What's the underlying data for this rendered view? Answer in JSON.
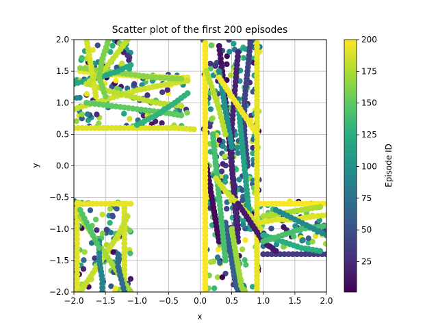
{
  "chart_data": {
    "type": "scatter",
    "title": "Scatter plot of the first 200 episodes",
    "xlabel": "x",
    "ylabel": "y",
    "xlim": [
      -2.0,
      2.0
    ],
    "ylim": [
      -2.0,
      2.0
    ],
    "xticks": [
      "−2.0",
      "−1.5",
      "−1.0",
      "−0.5",
      "0.0",
      "0.5",
      "1.0",
      "1.5",
      "2.0"
    ],
    "yticks": [
      "−2.0",
      "−1.5",
      "−1.0",
      "−0.5",
      "0.0",
      "0.5",
      "1.0",
      "1.5",
      "2.0"
    ],
    "xtick_values": [
      -2.0,
      -1.5,
      -1.0,
      -0.5,
      0.0,
      0.5,
      1.0,
      1.5,
      2.0
    ],
    "ytick_values": [
      -2.0,
      -1.5,
      -1.0,
      -0.5,
      0.0,
      0.5,
      1.0,
      1.5,
      2.0
    ],
    "grid": true,
    "colormap": "viridis",
    "colorbar": {
      "label": "Episode ID",
      "range": [
        1,
        200
      ],
      "ticks": [
        "25",
        "50",
        "75",
        "100",
        "125",
        "150",
        "175",
        "200"
      ],
      "tick_values": [
        25,
        50,
        75,
        100,
        125,
        150,
        175,
        200
      ]
    },
    "regions": [
      {
        "x": [
          -2.0,
          -1.1
        ],
        "y": [
          0.6,
          2.0
        ]
      },
      {
        "x": [
          -1.1,
          -0.2
        ],
        "y": [
          0.6,
          1.45
        ]
      },
      {
        "x": [
          0.05,
          0.95
        ],
        "y": [
          -2.0,
          2.0
        ]
      },
      {
        "x": [
          0.95,
          2.0
        ],
        "y": [
          -1.4,
          -0.55
        ]
      },
      {
        "x": [
          -2.0,
          -1.1
        ],
        "y": [
          -2.0,
          -0.55
        ]
      }
    ],
    "series": [
      {
        "episode": 190,
        "x": [
          -2.0,
          -1.6,
          -1.2,
          -0.8,
          -0.4,
          -0.1
        ],
        "y": [
          0.6,
          0.6,
          0.6,
          0.6,
          0.6,
          0.58
        ]
      },
      {
        "episode": 195,
        "x": [
          -1.9,
          -1.4,
          -0.9,
          -0.4,
          -0.2
        ],
        "y": [
          1.5,
          1.45,
          1.42,
          1.4,
          1.4
        ]
      },
      {
        "episode": 185,
        "x": [
          -2.0,
          -1.5,
          -1.0,
          -0.5,
          -0.2
        ],
        "y": [
          0.9,
          1.05,
          1.2,
          1.3,
          1.35
        ]
      },
      {
        "episode": 180,
        "x": [
          -1.9,
          -1.5,
          -1.1,
          -0.7,
          -0.3
        ],
        "y": [
          1.35,
          1.2,
          1.1,
          1.0,
          0.95
        ]
      },
      {
        "episode": 150,
        "x": [
          -1.8,
          -1.4,
          -1.0,
          -0.6,
          -0.3
        ],
        "y": [
          1.0,
          0.95,
          0.9,
          0.85,
          0.8
        ]
      },
      {
        "episode": 165,
        "x": [
          -1.9,
          -1.5,
          -1.1,
          -0.7,
          -0.3
        ],
        "y": [
          1.55,
          1.5,
          1.45,
          1.4,
          1.38
        ]
      },
      {
        "episode": 130,
        "x": [
          -1.0,
          -0.7,
          -0.4,
          -0.2
        ],
        "y": [
          0.65,
          0.8,
          1.0,
          1.15
        ]
      },
      {
        "episode": 120,
        "x": [
          -2.0,
          -1.6,
          -1.3,
          -1.1
        ],
        "y": [
          1.3,
          1.4,
          1.5,
          1.6
        ]
      },
      {
        "episode": 188,
        "x": [
          -1.8,
          -1.75,
          -1.7,
          -1.65
        ],
        "y": [
          2.0,
          1.7,
          1.4,
          1.1
        ]
      },
      {
        "episode": 182,
        "x": [
          -1.15,
          -1.3,
          -1.5,
          -1.8
        ],
        "y": [
          2.0,
          1.8,
          1.55,
          1.3
        ]
      },
      {
        "episode": 160,
        "x": [
          -1.45,
          -1.55,
          -1.6,
          -1.5
        ],
        "y": [
          2.0,
          1.7,
          1.4,
          1.1
        ]
      },
      {
        "episode": 10,
        "x": [
          0.3,
          0.35,
          0.4,
          0.45,
          0.5,
          0.55,
          0.6
        ],
        "y": [
          1.9,
          1.5,
          1.0,
          0.5,
          0.0,
          -0.5,
          -1.0
        ]
      },
      {
        "episode": 20,
        "x": [
          0.6,
          0.55,
          0.5,
          0.5,
          0.55,
          0.6
        ],
        "y": [
          1.8,
          1.2,
          0.6,
          0.0,
          -0.6,
          -1.2
        ]
      },
      {
        "episode": 5,
        "x": [
          0.1,
          0.15,
          0.2,
          0.25,
          0.3
        ],
        "y": [
          0.0,
          -0.3,
          -0.6,
          -0.9,
          -1.2
        ]
      },
      {
        "episode": 40,
        "x": [
          0.8,
          0.75,
          0.7,
          0.7,
          0.75
        ],
        "y": [
          2.0,
          1.5,
          1.0,
          0.5,
          0.0
        ]
      },
      {
        "episode": 60,
        "x": [
          0.4,
          0.45,
          0.5,
          0.55,
          0.6
        ],
        "y": [
          -0.9,
          -1.2,
          -1.5,
          -1.8,
          -2.0
        ]
      },
      {
        "episode": 100,
        "x": [
          0.3,
          0.35,
          0.4,
          0.45,
          0.5
        ],
        "y": [
          1.5,
          1.2,
          0.9,
          0.6,
          0.3
        ]
      },
      {
        "episode": 115,
        "x": [
          0.6,
          0.65,
          0.7,
          0.75,
          0.8
        ],
        "y": [
          1.0,
          0.5,
          0.0,
          -0.5,
          -1.0
        ]
      },
      {
        "episode": 140,
        "x": [
          0.2,
          0.25,
          0.3,
          0.35,
          0.4
        ],
        "y": [
          0.5,
          0.0,
          -0.5,
          -1.0,
          -1.5
        ]
      },
      {
        "episode": 170,
        "x": [
          0.5,
          0.55,
          0.6,
          0.65,
          0.7
        ],
        "y": [
          -1.0,
          -1.3,
          -1.6,
          -1.9,
          -2.0
        ]
      },
      {
        "episode": 198,
        "x": [
          0.08,
          0.08,
          0.08,
          0.08,
          0.08,
          0.08,
          0.08
        ],
        "y": [
          1.95,
          1.3,
          0.7,
          0.0,
          -0.7,
          -1.3,
          -2.0
        ]
      },
      {
        "episode": 193,
        "x": [
          0.9,
          0.9,
          0.9,
          0.9,
          0.9,
          0.9,
          0.9
        ],
        "y": [
          1.95,
          1.3,
          0.7,
          0.0,
          -0.7,
          -1.3,
          -2.0
        ]
      },
      {
        "episode": 186,
        "x": [
          0.25,
          0.4,
          0.6,
          0.8,
          0.95
        ],
        "y": [
          -0.2,
          -0.4,
          -0.6,
          -0.8,
          -1.0
        ]
      },
      {
        "episode": 178,
        "x": [
          0.1,
          0.2,
          0.3,
          0.35,
          0.4
        ],
        "y": [
          1.5,
          1.2,
          0.9,
          0.7,
          0.5
        ]
      },
      {
        "episode": 196,
        "x": [
          0.3,
          0.5,
          0.7,
          0.9
        ],
        "y": [
          1.4,
          1.1,
          0.8,
          0.5
        ]
      },
      {
        "episode": 35,
        "x": [
          1.0,
          1.2,
          1.4,
          1.6,
          1.8,
          2.0
        ],
        "y": [
          -1.4,
          -1.4,
          -1.4,
          -1.4,
          -1.4,
          -1.4
        ]
      },
      {
        "episode": 15,
        "x": [
          0.6,
          0.8,
          1.0,
          1.2
        ],
        "y": [
          -0.6,
          -0.9,
          -1.2,
          -1.35
        ]
      },
      {
        "episode": 125,
        "x": [
          1.0,
          1.3,
          1.6,
          1.9
        ],
        "y": [
          -1.1,
          -1.2,
          -1.3,
          -1.35
        ]
      },
      {
        "episode": 140,
        "x": [
          1.0,
          1.3,
          1.6,
          2.0
        ],
        "y": [
          -1.2,
          -1.1,
          -1.0,
          -0.95
        ]
      },
      {
        "episode": 199,
        "x": [
          0.95,
          1.2,
          1.5,
          1.8,
          2.0
        ],
        "y": [
          -0.6,
          -0.6,
          -0.6,
          -0.6,
          -0.6
        ]
      },
      {
        "episode": 190,
        "x": [
          0.95,
          1.2,
          1.5,
          1.8,
          2.0
        ],
        "y": [
          -0.9,
          -0.85,
          -0.85,
          -0.8,
          -0.78
        ]
      },
      {
        "episode": 175,
        "x": [
          1.0,
          1.3,
          1.6,
          1.9
        ],
        "y": [
          -0.8,
          -0.75,
          -0.7,
          -0.65
        ]
      },
      {
        "episode": 95,
        "x": [
          1.2,
          1.5,
          1.8,
          2.0
        ],
        "y": [
          -0.7,
          -0.85,
          -1.0,
          -1.1
        ]
      },
      {
        "episode": 192,
        "x": [
          -1.95,
          -1.95,
          -1.95,
          -1.95,
          -1.95
        ],
        "y": [
          -0.6,
          -0.95,
          -1.3,
          -1.65,
          -2.0
        ]
      },
      {
        "episode": 187,
        "x": [
          -1.2,
          -1.2,
          -1.2,
          -1.2,
          -1.2
        ],
        "y": [
          -0.6,
          -0.95,
          -1.3,
          -1.65,
          -2.0
        ]
      },
      {
        "episode": 194,
        "x": [
          -1.9,
          -1.7,
          -1.5,
          -1.3,
          -1.1
        ],
        "y": [
          -0.6,
          -0.6,
          -0.6,
          -0.6,
          -0.6
        ]
      },
      {
        "episode": 183,
        "x": [
          -1.9,
          -1.7,
          -1.5,
          -1.3,
          -1.15
        ],
        "y": [
          -2.0,
          -1.7,
          -1.4,
          -1.1,
          -0.8
        ]
      },
      {
        "episode": 172,
        "x": [
          -1.1,
          -1.3,
          -1.5,
          -1.7,
          -1.9
        ],
        "y": [
          -2.0,
          -1.7,
          -1.4,
          -1.1,
          -0.8
        ]
      },
      {
        "episode": 90,
        "x": [
          -1.6,
          -1.6,
          -1.55,
          -1.55
        ],
        "y": [
          -1.2,
          -1.5,
          -1.8,
          -2.0
        ]
      },
      {
        "episode": 70,
        "x": [
          -1.3,
          -1.3,
          -1.25,
          -1.2
        ],
        "y": [
          -1.4,
          -1.6,
          -1.8,
          -2.0
        ]
      },
      {
        "episode": 145,
        "x": [
          -1.9,
          -1.8,
          -1.7,
          -1.6
        ],
        "y": [
          -0.7,
          -0.9,
          -1.1,
          -1.3
        ]
      }
    ]
  }
}
